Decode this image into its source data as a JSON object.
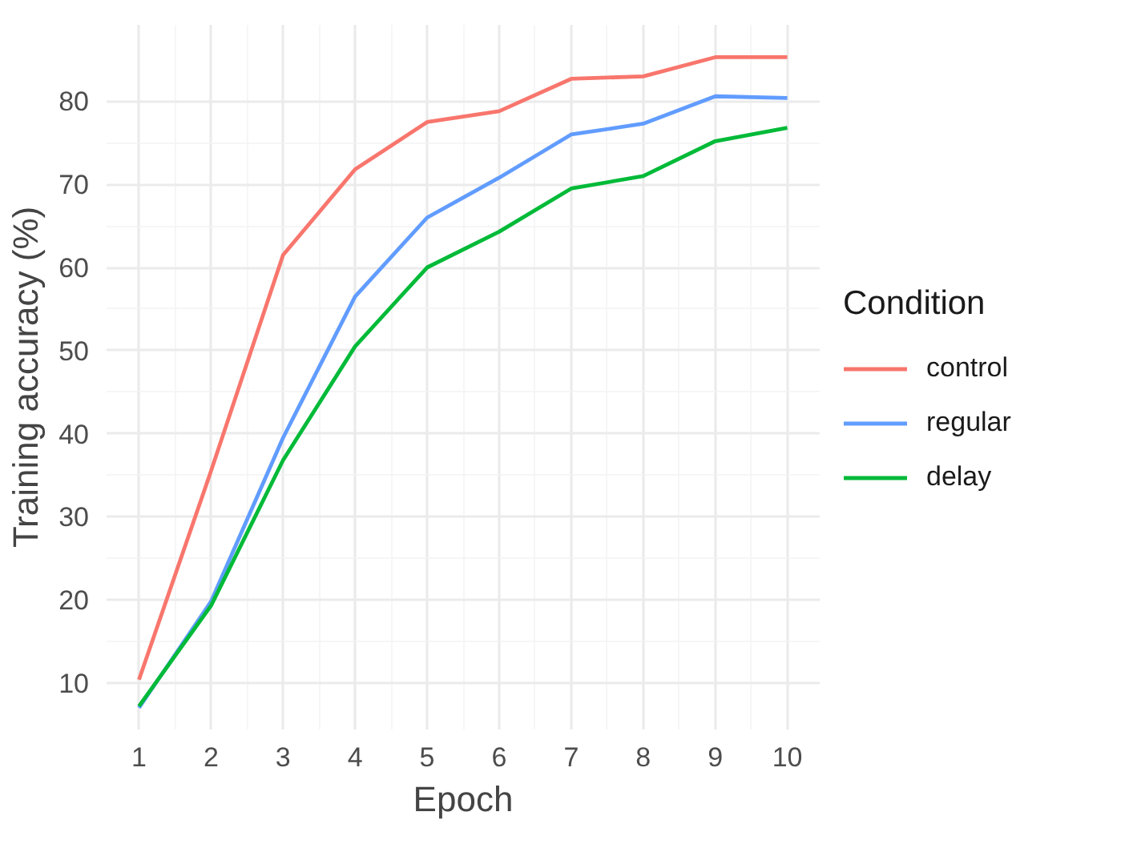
{
  "chart_data": {
    "type": "line",
    "xlabel": "Epoch",
    "ylabel": "Training accuracy (%)",
    "legend_title": "Condition",
    "legend": "right",
    "grid": true,
    "x": [
      1,
      2,
      3,
      4,
      5,
      6,
      7,
      8,
      9,
      10
    ],
    "xlim": [
      0.55,
      10.45
    ],
    "xticks": [
      1,
      2,
      3,
      4,
      5,
      6,
      7,
      8,
      9,
      10
    ],
    "ylim": [
      4.4,
      89.2
    ],
    "yticks": [
      10,
      20,
      30,
      40,
      50,
      60,
      70,
      80
    ],
    "series": [
      {
        "name": "control",
        "color": "#f8766d",
        "values": [
          10.4,
          35.5,
          61.5,
          71.8,
          77.5,
          78.8,
          82.7,
          83.0,
          85.3,
          85.3
        ]
      },
      {
        "name": "regular",
        "color": "#619cff",
        "values": [
          7.0,
          19.8,
          39.5,
          56.5,
          66.0,
          70.8,
          76.0,
          77.3,
          80.6,
          80.4
        ]
      },
      {
        "name": "delay",
        "color": "#00ba38",
        "values": [
          7.2,
          19.3,
          36.8,
          50.5,
          60.0,
          64.3,
          69.5,
          71.0,
          75.2,
          76.8
        ]
      }
    ]
  }
}
